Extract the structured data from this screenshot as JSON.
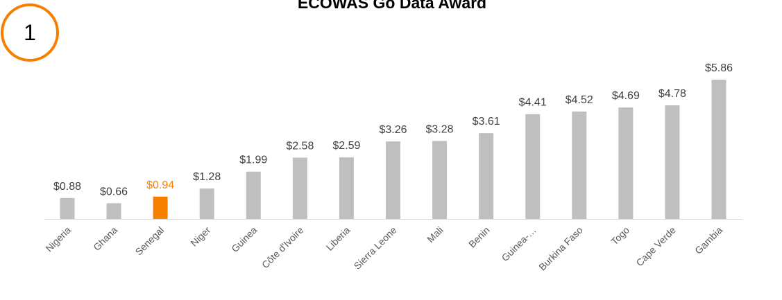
{
  "badge": "1",
  "chart_data": {
    "type": "bar",
    "title": "ECOWAS Go Data Award",
    "categories": [
      "Nigeria",
      "Ghana",
      "Senegal",
      "Niger",
      "Guinea",
      "Côte d'Ivoire",
      "Liberia",
      "Sierra Leone",
      "Mali",
      "Benin",
      "Guinea-…",
      "Burkina Faso",
      "Togo",
      "Cape Verde",
      "Gambia"
    ],
    "values": [
      0.88,
      0.66,
      0.94,
      1.28,
      1.99,
      2.58,
      2.59,
      3.26,
      3.28,
      3.61,
      4.41,
      4.52,
      4.69,
      4.78,
      5.86
    ],
    "value_labels": [
      "$0.88",
      "$0.66",
      "$0.94",
      "$1.28",
      "$1.99",
      "$2.58",
      "$2.59",
      "$3.26",
      "$3.28",
      "$3.61",
      "$4.41",
      "$4.52",
      "$4.69",
      "$4.78",
      "$5.86"
    ],
    "colors": [
      "#bfbfbf",
      "#bfbfbf",
      "#f77f00",
      "#bfbfbf",
      "#bfbfbf",
      "#bfbfbf",
      "#bfbfbf",
      "#bfbfbf",
      "#bfbfbf",
      "#bfbfbf",
      "#bfbfbf",
      "#bfbfbf",
      "#bfbfbf",
      "#bfbfbf",
      "#bfbfbf"
    ]
  }
}
